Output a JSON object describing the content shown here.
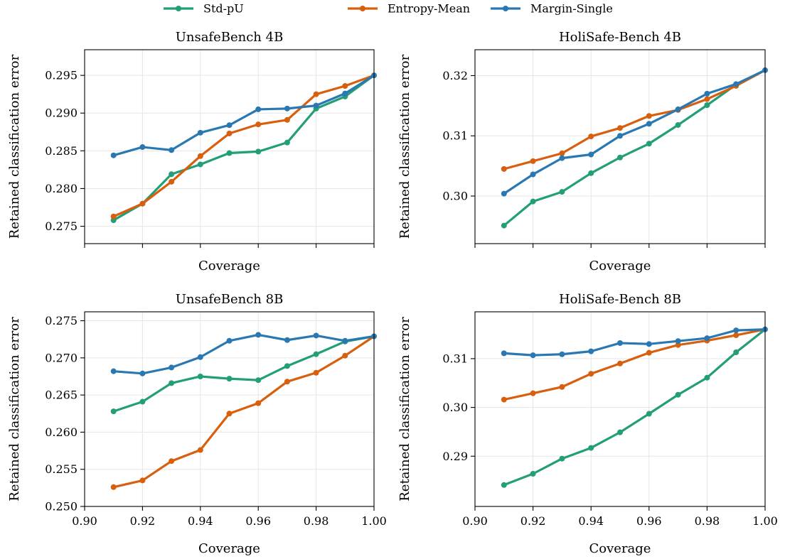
{
  "legend": [
    {
      "name": "Std-pU",
      "color": "#229e78"
    },
    {
      "name": "Entropy-Mean",
      "color": "#d75f0e"
    },
    {
      "name": "Margin-Single",
      "color": "#2a78b2"
    }
  ],
  "chart_data": [
    {
      "type": "line",
      "title": "UnsafeBench 4B",
      "xlabel": "Coverage",
      "ylabel": "Retained classification error",
      "xlim": [
        0.9,
        1.0
      ],
      "ylim": [
        0.2727,
        0.2984
      ],
      "x_ticks": [
        0.9,
        0.92,
        0.94,
        0.96,
        0.98,
        1.0
      ],
      "x_tick_labels_shown": false,
      "y_ticks": [
        0.275,
        0.28,
        0.285,
        0.29,
        0.295
      ],
      "y_tick_labels": [
        "0.275",
        "0.280",
        "0.285",
        "0.290",
        "0.295"
      ],
      "grid": true,
      "x": [
        0.91,
        0.92,
        0.93,
        0.94,
        0.95,
        0.96,
        0.97,
        0.98,
        0.99,
        1.0
      ],
      "series": [
        {
          "name": "Std-pU",
          "values": [
            0.2758,
            0.278,
            0.2819,
            0.2832,
            0.2847,
            0.2849,
            0.2861,
            0.2906,
            0.2922,
            0.295
          ]
        },
        {
          "name": "Entropy-Mean",
          "values": [
            0.2763,
            0.278,
            0.2809,
            0.2843,
            0.2873,
            0.2885,
            0.2891,
            0.2925,
            0.2936,
            0.295
          ]
        },
        {
          "name": "Margin-Single",
          "values": [
            0.2844,
            0.2855,
            0.2851,
            0.2874,
            0.2884,
            0.2905,
            0.2906,
            0.291,
            0.2926,
            0.295
          ]
        }
      ]
    },
    {
      "type": "line",
      "title": "HoliSafe-Bench 4B",
      "xlabel": "Coverage",
      "ylabel": "Retained classification error",
      "xlim": [
        0.9,
        1.0
      ],
      "ylim": [
        0.2921,
        0.3243
      ],
      "x_ticks": [
        0.9,
        0.92,
        0.94,
        0.96,
        0.98,
        1.0
      ],
      "x_tick_labels_shown": false,
      "y_ticks": [
        0.3,
        0.31,
        0.32
      ],
      "y_tick_labels": [
        "0.30",
        "0.31",
        "0.32"
      ],
      "grid": true,
      "x": [
        0.91,
        0.92,
        0.93,
        0.94,
        0.95,
        0.96,
        0.97,
        0.98,
        0.99,
        1.0
      ],
      "series": [
        {
          "name": "Std-pU",
          "values": [
            0.2951,
            0.2991,
            0.3007,
            0.3038,
            0.3064,
            0.3087,
            0.3118,
            0.3151,
            0.3185,
            0.3209
          ]
        },
        {
          "name": "Entropy-Mean",
          "values": [
            0.3045,
            0.3058,
            0.3071,
            0.3099,
            0.3113,
            0.3133,
            0.3143,
            0.3161,
            0.3183,
            0.3209
          ]
        },
        {
          "name": "Margin-Single",
          "values": [
            0.3004,
            0.3036,
            0.3063,
            0.3069,
            0.31,
            0.312,
            0.3144,
            0.317,
            0.3186,
            0.3209
          ]
        }
      ]
    },
    {
      "type": "line",
      "title": "UnsafeBench 8B",
      "xlabel": "Coverage",
      "ylabel": "Retained classification error",
      "xlim": [
        0.9,
        1.0
      ],
      "ylim": [
        0.25,
        0.2762
      ],
      "x_ticks": [
        0.9,
        0.92,
        0.94,
        0.96,
        0.98,
        1.0
      ],
      "x_tick_labels": [
        "0.90",
        "0.92",
        "0.94",
        "0.96",
        "0.98",
        "1.00"
      ],
      "x_tick_labels_shown": true,
      "y_ticks": [
        0.25,
        0.255,
        0.26,
        0.265,
        0.27,
        0.275
      ],
      "y_tick_labels": [
        "0.250",
        "0.255",
        "0.260",
        "0.265",
        "0.270",
        "0.275"
      ],
      "grid": true,
      "x": [
        0.91,
        0.92,
        0.93,
        0.94,
        0.95,
        0.96,
        0.97,
        0.98,
        0.99,
        1.0
      ],
      "series": [
        {
          "name": "Std-pU",
          "values": [
            0.2628,
            0.2641,
            0.2666,
            0.2675,
            0.2672,
            0.267,
            0.2689,
            0.2705,
            0.2722,
            0.2729
          ]
        },
        {
          "name": "Entropy-Mean",
          "values": [
            0.2526,
            0.2535,
            0.2561,
            0.2576,
            0.2625,
            0.2639,
            0.2668,
            0.268,
            0.2703,
            0.2729
          ]
        },
        {
          "name": "Margin-Single",
          "values": [
            0.2682,
            0.2679,
            0.2687,
            0.2701,
            0.2723,
            0.2731,
            0.2724,
            0.273,
            0.2723,
            0.2729
          ]
        }
      ]
    },
    {
      "type": "line",
      "title": "HoliSafe-Bench 8B",
      "xlabel": "Coverage",
      "ylabel": "Retained classification error",
      "xlim": [
        0.9,
        1.0
      ],
      "ylim": [
        0.2797,
        0.3196
      ],
      "x_ticks": [
        0.9,
        0.92,
        0.94,
        0.96,
        0.98,
        1.0
      ],
      "x_tick_labels": [
        "0.90",
        "0.92",
        "0.94",
        "0.96",
        "0.98",
        "1.00"
      ],
      "x_tick_labels_shown": true,
      "y_ticks": [
        0.29,
        0.3,
        0.31
      ],
      "y_tick_labels": [
        "0.29",
        "0.30",
        "0.31"
      ],
      "grid": true,
      "x": [
        0.91,
        0.92,
        0.93,
        0.94,
        0.95,
        0.96,
        0.97,
        0.98,
        0.99,
        1.0
      ],
      "series": [
        {
          "name": "Std-pU",
          "values": [
            0.2841,
            0.2864,
            0.2895,
            0.2917,
            0.2949,
            0.2987,
            0.3026,
            0.3061,
            0.3113,
            0.316
          ]
        },
        {
          "name": "Entropy-Mean",
          "values": [
            0.3016,
            0.3029,
            0.3042,
            0.3069,
            0.309,
            0.3112,
            0.3128,
            0.3137,
            0.3148,
            0.316
          ]
        },
        {
          "name": "Margin-Single",
          "values": [
            0.3111,
            0.3107,
            0.3109,
            0.3115,
            0.3132,
            0.313,
            0.3136,
            0.3142,
            0.3158,
            0.316
          ]
        }
      ]
    }
  ]
}
